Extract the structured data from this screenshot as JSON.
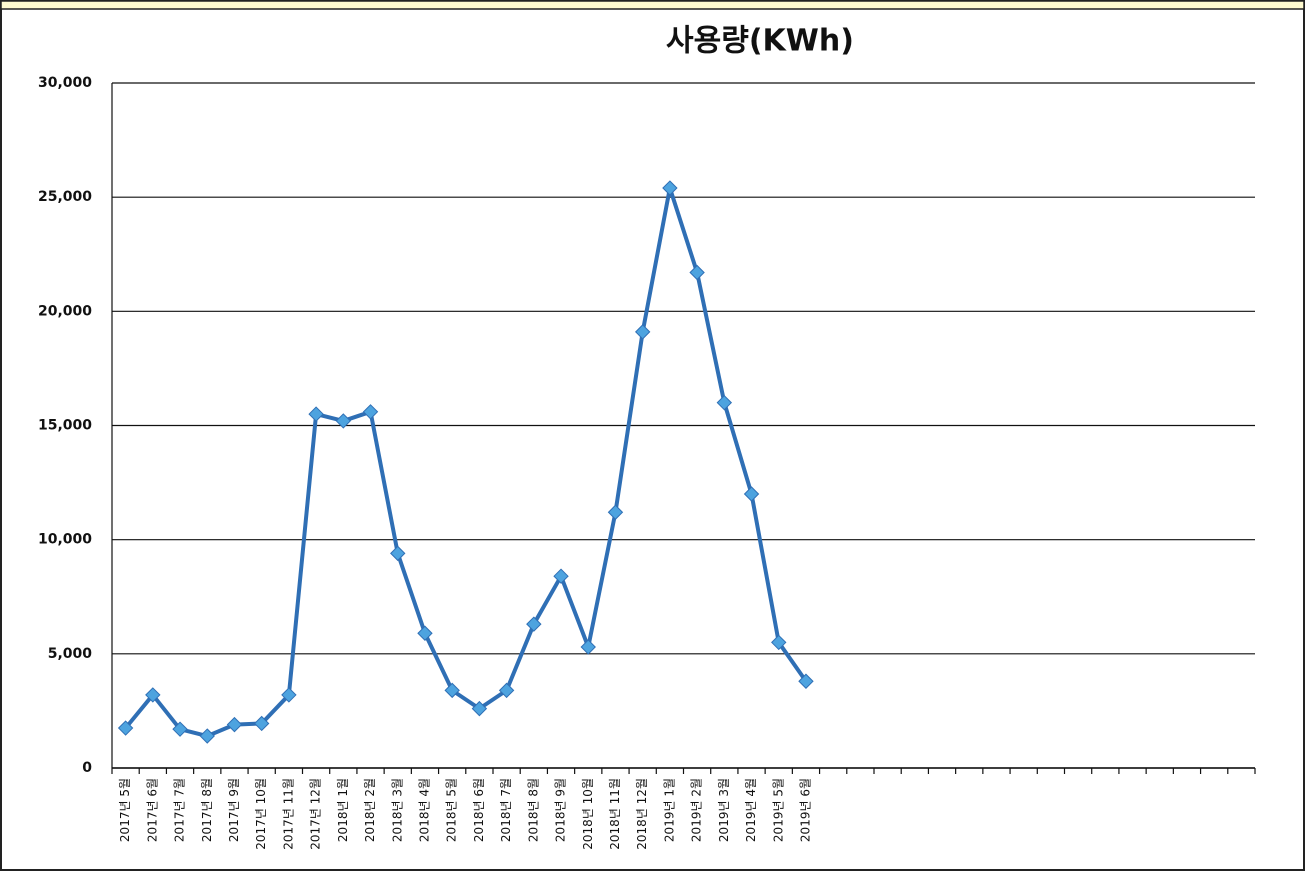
{
  "chart_data": {
    "type": "line",
    "title": "사용량(KWh)",
    "categories": [
      "2017년 5월",
      "2017년 6월",
      "2017년 7월",
      "2017년 8월",
      "2017년 9월",
      "2017년 10월",
      "2017년 11월",
      "2017년 12월",
      "2018년 1월",
      "2018년 2월",
      "2018년 3월",
      "2018년 4월",
      "2018년 5월",
      "2018년 6월",
      "2018년 7월",
      "2018년 8월",
      "2018년 9월",
      "2018년 10월",
      "2018년 11월",
      "2018년 12월",
      "2019년 1월",
      "2019년 2월",
      "2019년 3월",
      "2019년 4월",
      "2019년 5월",
      "2019년 6월",
      null,
      null,
      null,
      null,
      null,
      null,
      null,
      null,
      null,
      null,
      null,
      null,
      null,
      null,
      null,
      null
    ],
    "series": [
      {
        "name": "사용량",
        "color": "#2f6fb5",
        "marker_color": "#4da3df",
        "values": [
          1750,
          3200,
          1700,
          1400,
          1900,
          1950,
          3200,
          15500,
          15200,
          15600,
          9400,
          5900,
          3400,
          2600,
          3400,
          6300,
          8400,
          5300,
          11200,
          19100,
          25400,
          21700,
          16000,
          12000,
          5500,
          3800,
          null,
          null,
          null,
          null,
          null,
          null,
          null,
          null,
          null,
          null,
          null,
          null,
          null,
          null,
          null,
          null
        ]
      }
    ],
    "ylim": [
      0,
      30000
    ],
    "yticks": [
      0,
      {
        "value": 5000,
        "label": "5,000"
      },
      {
        "value": 10000,
        "label": "10,000"
      },
      {
        "value": 15000,
        "label": "15,000"
      },
      {
        "value": 20000,
        "label": "20,000"
      },
      {
        "value": 25000,
        "label": "25,000"
      },
      {
        "value": 30000,
        "label": "30,000"
      }
    ],
    "grid": true
  }
}
